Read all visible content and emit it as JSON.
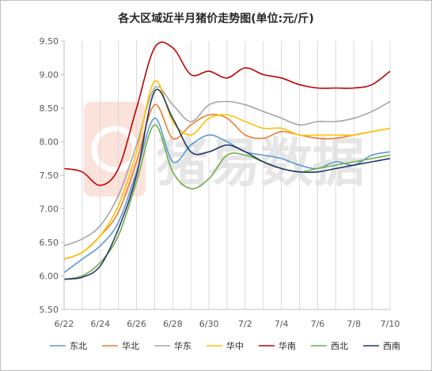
{
  "chart_data": {
    "type": "line",
    "title": "各大区域近半月猪价走势图(单位:元/斤)",
    "xlabel": "",
    "ylabel": "",
    "ylim": [
      5.5,
      9.5
    ],
    "yticks": [
      "5.50",
      "6.00",
      "6.50",
      "7.00",
      "7.50",
      "8.00",
      "8.50",
      "9.00",
      "9.50"
    ],
    "x": [
      "6/22",
      "6/23",
      "6/24",
      "6/25",
      "6/26",
      "6/27",
      "6/28",
      "6/29",
      "6/30",
      "7/1",
      "7/2",
      "7/3",
      "7/4",
      "7/5",
      "7/6",
      "7/7",
      "7/8",
      "7/9",
      "7/10"
    ],
    "xtick_labels": [
      "6/22",
      "6/24",
      "6/26",
      "6/28",
      "6/30",
      "7/2",
      "7/4",
      "7/6",
      "7/8",
      "7/10"
    ],
    "grid": "vertical",
    "legend_position": "bottom",
    "watermark": "猪易数据",
    "series": [
      {
        "name": "东北",
        "color": "#5b9bd5",
        "values": [
          6.05,
          6.25,
          6.45,
          6.8,
          7.55,
          8.35,
          7.7,
          7.95,
          8.1,
          8.0,
          7.85,
          7.8,
          7.75,
          7.65,
          7.6,
          7.7,
          7.65,
          7.8,
          7.85
        ]
      },
      {
        "name": "华北",
        "color": "#ed7d31",
        "values": [
          6.25,
          6.35,
          6.6,
          6.95,
          7.7,
          8.55,
          8.05,
          8.25,
          8.4,
          8.35,
          8.1,
          8.05,
          8.15,
          8.1,
          8.05,
          8.05,
          8.1,
          8.15,
          8.2
        ]
      },
      {
        "name": "华东",
        "color": "#a5a5a5",
        "values": [
          6.45,
          6.55,
          6.75,
          7.2,
          7.95,
          8.8,
          8.55,
          8.3,
          8.55,
          8.6,
          8.55,
          8.45,
          8.35,
          8.25,
          8.3,
          8.3,
          8.35,
          8.45,
          8.6
        ]
      },
      {
        "name": "华中",
        "color": "#ffc000",
        "values": [
          6.25,
          6.35,
          6.6,
          7.05,
          7.85,
          8.9,
          8.3,
          8.1,
          8.35,
          8.4,
          8.3,
          8.2,
          8.2,
          8.1,
          8.1,
          8.1,
          8.1,
          8.15,
          8.2
        ]
      },
      {
        "name": "华南",
        "color": "#c00000",
        "values": [
          7.6,
          7.55,
          7.35,
          7.6,
          8.5,
          9.4,
          9.4,
          9.0,
          9.05,
          8.95,
          9.1,
          9.0,
          8.95,
          8.85,
          8.8,
          8.8,
          8.8,
          8.85,
          9.05
        ]
      },
      {
        "name": "西北",
        "color": "#70ad47",
        "values": [
          5.95,
          6.0,
          6.2,
          6.6,
          7.4,
          8.25,
          7.55,
          7.3,
          7.45,
          7.8,
          7.8,
          7.7,
          7.6,
          7.55,
          7.6,
          7.65,
          7.7,
          7.75,
          7.8
        ]
      },
      {
        "name": "西南",
        "color": "#203864",
        "values": [
          5.95,
          5.98,
          6.15,
          6.7,
          7.5,
          8.75,
          8.35,
          7.85,
          7.85,
          7.95,
          7.85,
          7.7,
          7.6,
          7.55,
          7.55,
          7.6,
          7.65,
          7.7,
          7.75
        ]
      }
    ]
  }
}
